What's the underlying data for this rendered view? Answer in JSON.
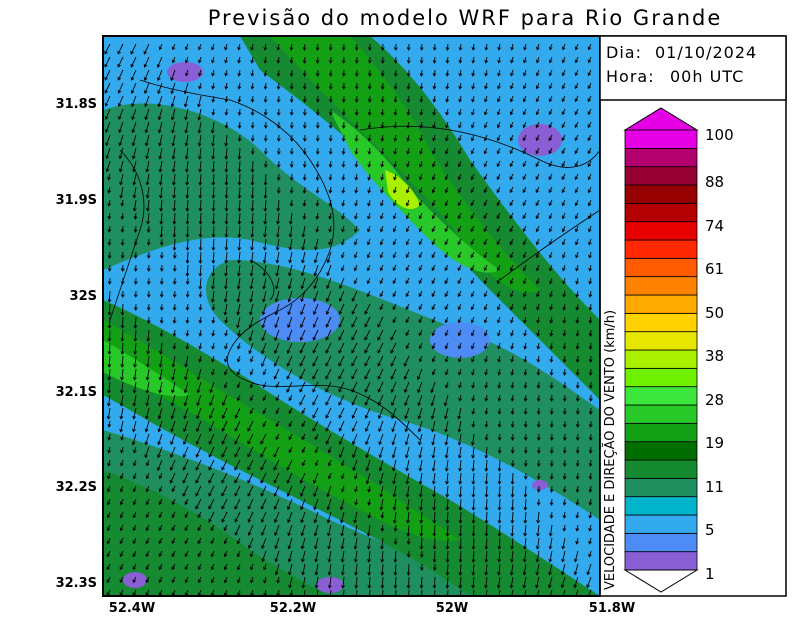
{
  "title": "Previsão do modelo WRF para Rio Grande",
  "info": {
    "date_label": "Dia:",
    "date_value": "01/10/2024",
    "time_label": "Hora:",
    "time_value": "00h UTC"
  },
  "map": {
    "lat_ticks": [
      "31.8S",
      "31.9S",
      "32S",
      "32.1S",
      "32.2S",
      "32.3S"
    ],
    "lon_ticks": [
      "52.4W",
      "52.2W",
      "52W",
      "51.8W"
    ]
  },
  "colorbar": {
    "title": "VELOCIDADE E DIREÇÃO DO VENTO (km/h)",
    "tick_labels": [
      "1",
      "5",
      "11",
      "19",
      "28",
      "38",
      "50",
      "61",
      "74",
      "88",
      "100"
    ],
    "colors": [
      "#8a5fd6",
      "#4d8cf5",
      "#33aaee",
      "#00b4cc",
      "#1f8f5f",
      "#158a30",
      "#006e00",
      "#14a014",
      "#28c828",
      "#3ce63c",
      "#6ef000",
      "#a8f000",
      "#e6e600",
      "#ffd200",
      "#ffaa00",
      "#ff8200",
      "#ff5a00",
      "#ff2800",
      "#e60000",
      "#b40000",
      "#960000",
      "#960032",
      "#b4006e",
      "#e600e6"
    ]
  }
}
